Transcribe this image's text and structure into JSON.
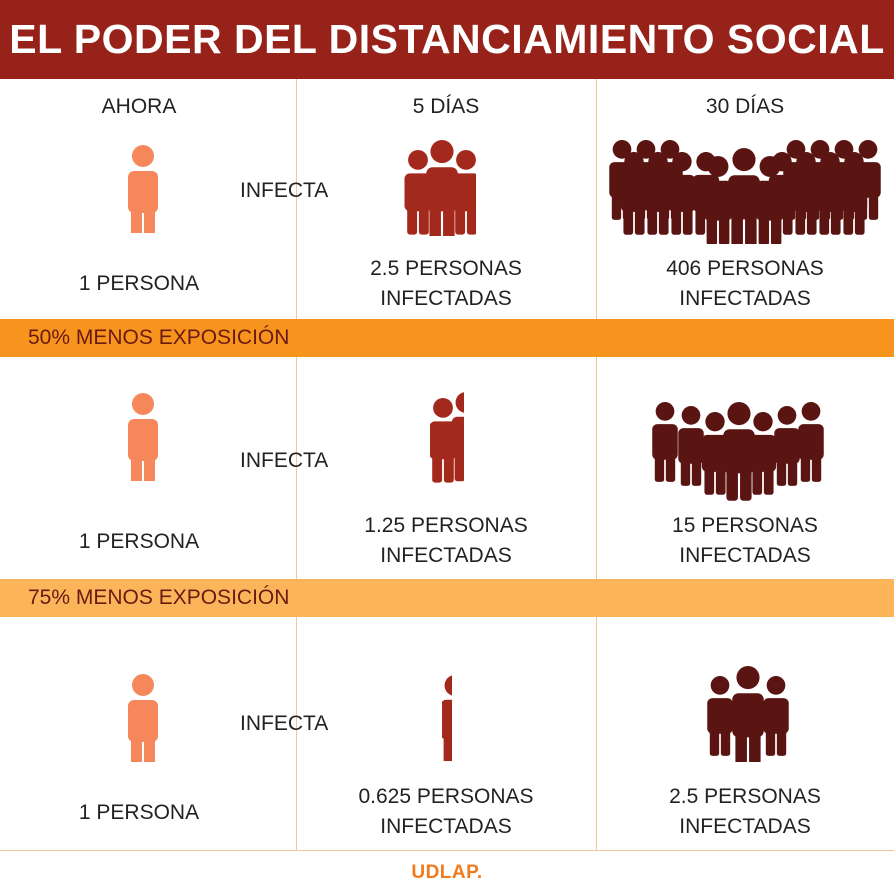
{
  "title": "EL PODER DEL DISTANCIAMIENTO SOCIAL",
  "columns": [
    "AHORA",
    "5 DÍAS",
    "30 DÍAS"
  ],
  "infects_label": "INFECTA",
  "rows": [
    {
      "band": "",
      "source": "1 PERSONA",
      "day5": {
        "count": 2.5,
        "line1": "2.5 PERSONAS",
        "line2": "INFECTADAS"
      },
      "day30": {
        "count": 406,
        "line1": "406 PERSONAS",
        "line2": "INFECTADAS"
      }
    },
    {
      "band": "50% MENOS EXPOSICIÓN",
      "source": "1 PERSONA",
      "day5": {
        "count": 1.25,
        "line1": "1.25 PERSONAS",
        "line2": "INFECTADAS"
      },
      "day30": {
        "count": 15,
        "line1": "15 PERSONAS",
        "line2": "INFECTADAS"
      }
    },
    {
      "band": "75% MENOS EXPOSICIÓN",
      "source": "1 PERSONA",
      "day5": {
        "count": 0.625,
        "line1": "0.625 PERSONAS",
        "line2": "INFECTADAS"
      },
      "day30": {
        "count": 2.5,
        "line1": "2.5 PERSONAS",
        "line2": "INFECTADAS"
      }
    }
  ],
  "footer": "UDLAP.",
  "colors": {
    "header_bg": "#96221a",
    "band_50": "#f7941d",
    "band_75": "#fbb45a",
    "source_person": "#f5875a",
    "day5_person": "#a3291c",
    "day30_person": "#5a1512",
    "footer_text": "#f07a1c"
  },
  "icons": [
    "person-icon",
    "group-icon",
    "crowd-icon"
  ]
}
